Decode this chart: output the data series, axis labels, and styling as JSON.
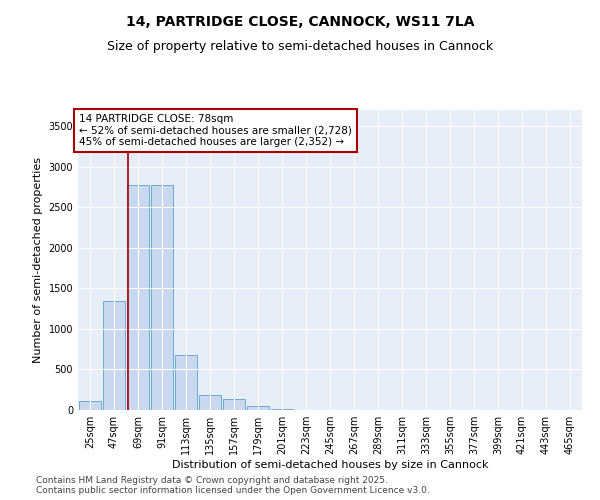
{
  "title1": "14, PARTRIDGE CLOSE, CANNOCK, WS11 7LA",
  "title2": "Size of property relative to semi-detached houses in Cannock",
  "xlabel": "Distribution of semi-detached houses by size in Cannock",
  "ylabel": "Number of semi-detached properties",
  "categories": [
    "25sqm",
    "47sqm",
    "69sqm",
    "91sqm",
    "113sqm",
    "135sqm",
    "157sqm",
    "179sqm",
    "201sqm",
    "223sqm",
    "245sqm",
    "267sqm",
    "289sqm",
    "311sqm",
    "333sqm",
    "355sqm",
    "377sqm",
    "399sqm",
    "421sqm",
    "443sqm",
    "465sqm"
  ],
  "values": [
    110,
    1350,
    2780,
    2780,
    680,
    190,
    130,
    50,
    15,
    0,
    0,
    0,
    0,
    0,
    0,
    0,
    0,
    0,
    0,
    0,
    0
  ],
  "bar_color": "#c8d8ef",
  "bar_edge_color": "#6aaad4",
  "vline_x": 1.59,
  "vline_color": "#aa0000",
  "annotation_title": "14 PARTRIDGE CLOSE: 78sqm",
  "annotation_line1": "← 52% of semi-detached houses are smaller (2,728)",
  "annotation_line2": "45% of semi-detached houses are larger (2,352) →",
  "annotation_box_color": "white",
  "annotation_box_edge": "#aa0000",
  "ylim": [
    0,
    3700
  ],
  "yticks": [
    0,
    500,
    1000,
    1500,
    2000,
    2500,
    3000,
    3500
  ],
  "bg_color": "#e8eef8",
  "footer1": "Contains HM Land Registry data © Crown copyright and database right 2025.",
  "footer2": "Contains public sector information licensed under the Open Government Licence v3.0.",
  "title1_fontsize": 10,
  "title2_fontsize": 9,
  "xlabel_fontsize": 8,
  "ylabel_fontsize": 8,
  "tick_fontsize": 7,
  "annotation_fontsize": 7.5,
  "footer_fontsize": 6.5
}
